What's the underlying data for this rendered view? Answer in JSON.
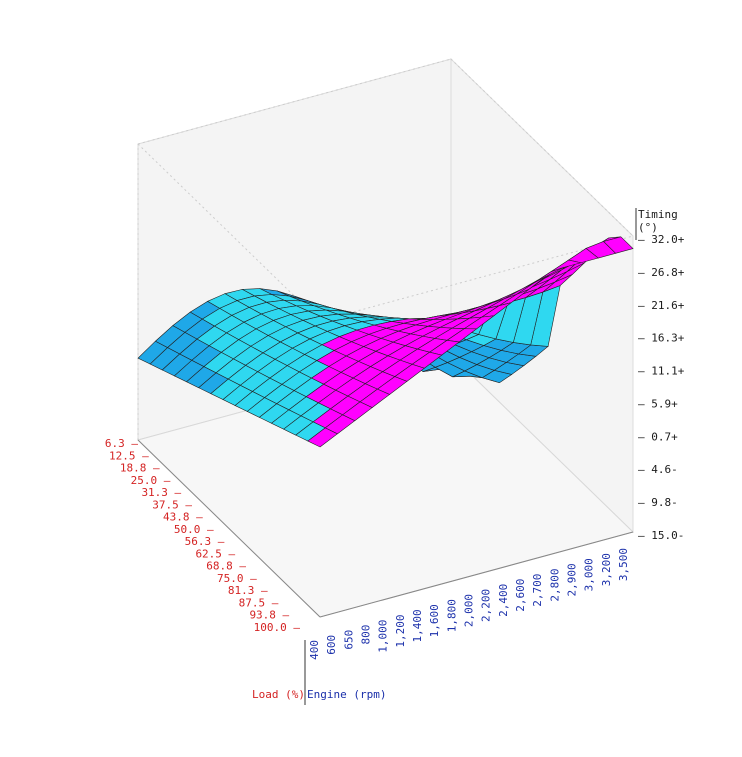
{
  "chart_data": {
    "type": "surface",
    "z_title": "Timing",
    "z_unit": "(°)",
    "load_axis_title": "Load (%)",
    "rpm_axis_title": "Engine (rpm)",
    "rpm_ticks": [
      "400",
      "600",
      "650",
      "800",
      "1,000",
      "1,200",
      "1,400",
      "1,600",
      "1,800",
      "2,000",
      "2,200",
      "2,400",
      "2,600",
      "2,700",
      "2,800",
      "2,900",
      "3,000",
      "3,200",
      "3,500"
    ],
    "load_ticks": [
      "6.3",
      "12.5",
      "18.8",
      "25.0",
      "31.3",
      "37.5",
      "43.8",
      "50.0",
      "56.3",
      "62.5",
      "68.8",
      "75.0",
      "81.3",
      "87.5",
      "93.8",
      "100.0"
    ],
    "timing_ticks": [
      "32.0+",
      "26.8+",
      "21.6+",
      "16.3+",
      "11.1+",
      "5.9+",
      "0.7+",
      "4.6-",
      "9.8-",
      "15.0-"
    ],
    "z_range": [
      -15.0,
      32.0
    ],
    "colors": {
      "advance": "#ff00ff",
      "retard": "#1fa8e8",
      "rpm_axis": "#1a2faa",
      "load_axis": "#d42323"
    }
  }
}
